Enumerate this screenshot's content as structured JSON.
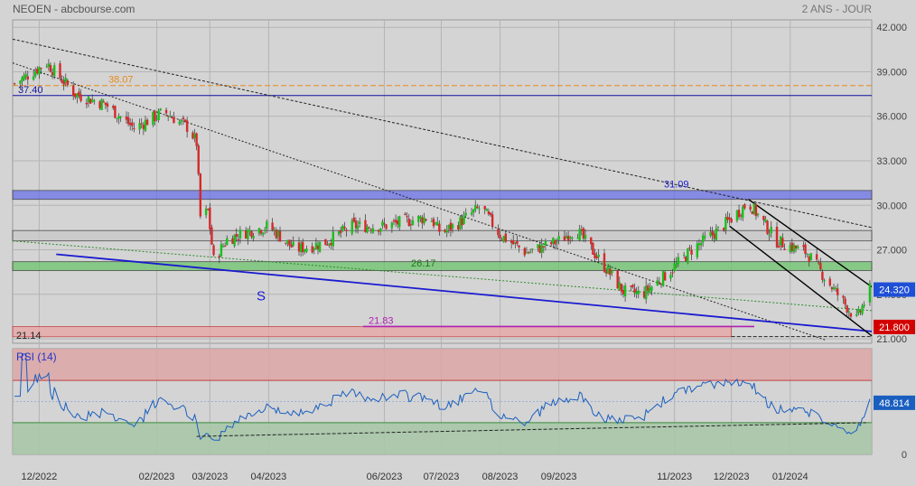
{
  "header": {
    "title": "NEOEN - abcbourse.com",
    "period": "2 ANS - JOUR"
  },
  "chart_data": [
    {
      "type": "candlestick",
      "name": "price",
      "ylim": [
        20.7,
        42.5
      ],
      "yticks": [
        21.0,
        24.0,
        27.0,
        30.0,
        33.0,
        36.0,
        39.0,
        42.0
      ],
      "ytick_labels": [
        "21.000",
        "24.000",
        "27.000",
        "30.000",
        "33.000",
        "36.000",
        "39.000",
        "42.000"
      ],
      "price_path": [
        [
          "2022-11-18",
          38.2
        ],
        [
          "2022-12-05",
          39.6
        ],
        [
          "2022-12-20",
          37.5
        ],
        [
          "2023-01-05",
          36.8
        ],
        [
          "2023-01-20",
          35.2
        ],
        [
          "2023-02-05",
          36.3
        ],
        [
          "2023-02-18",
          35.2
        ],
        [
          "2023-02-22",
          34.2
        ],
        [
          "2023-02-24",
          29.2
        ],
        [
          "2023-02-28",
          29.6
        ],
        [
          "2023-03-03",
          26.3
        ],
        [
          "2023-03-10",
          27.7
        ],
        [
          "2023-03-20",
          28.2
        ],
        [
          "2023-04-01",
          28.6
        ],
        [
          "2023-04-15",
          27.0
        ],
        [
          "2023-05-01",
          27.5
        ],
        [
          "2023-05-15",
          28.6
        ],
        [
          "2023-06-01",
          28.6
        ],
        [
          "2023-06-15",
          29.0
        ],
        [
          "2023-06-25",
          29.2
        ],
        [
          "2023-07-01",
          28.1
        ],
        [
          "2023-07-10",
          28.8
        ],
        [
          "2023-07-22",
          29.9
        ],
        [
          "2023-08-01",
          28.0
        ],
        [
          "2023-08-15",
          26.8
        ],
        [
          "2023-09-01",
          27.6
        ],
        [
          "2023-09-10",
          28.4
        ],
        [
          "2023-09-22",
          26.4
        ],
        [
          "2023-10-05",
          24.2
        ],
        [
          "2023-10-15",
          24.0
        ],
        [
          "2023-10-30",
          25.6
        ],
        [
          "2023-11-10",
          27.0
        ],
        [
          "2023-11-25",
          28.4
        ],
        [
          "2023-12-10",
          30.2
        ],
        [
          "2023-12-25",
          27.6
        ],
        [
          "2024-01-10",
          26.8
        ],
        [
          "2024-01-20",
          25.0
        ],
        [
          "2024-02-05",
          22.3
        ],
        [
          "2024-02-12",
          24.3
        ]
      ],
      "last_price": {
        "value": 24.32,
        "label": "24.320",
        "color": "#1f4fd6"
      },
      "close_marker": {
        "value": 21.8,
        "label": "21.800",
        "color": "#d40000"
      },
      "levels": [
        {
          "value": 38.07,
          "label": "38.07",
          "color": "#e88a1a"
        },
        {
          "value": 37.4,
          "label": "37.40",
          "color": "#1010a0"
        },
        {
          "value": 31.09,
          "label": "31.09",
          "color": "#1a1ad0"
        },
        {
          "value": 26.17,
          "label": "26.17",
          "color": "#1a7a1a"
        },
        {
          "value": 21.83,
          "label": "21.83",
          "color": "#b020b0"
        },
        {
          "value": 21.14,
          "label": "21.14",
          "color": "#222222"
        }
      ],
      "annotations": [
        {
          "text": "S",
          "color": "#1a1ad0"
        }
      ],
      "zones": [
        {
          "from": 30.4,
          "to": 31.0,
          "color": "#6b72e8"
        },
        {
          "from": 27.6,
          "to": 28.3,
          "color": "#c8c8c8"
        },
        {
          "from": 25.6,
          "to": 26.2,
          "color": "#6cc46c"
        },
        {
          "from": 21.14,
          "to": 21.83,
          "color": "#e8a3a3"
        }
      ]
    },
    {
      "type": "line",
      "name": "RSI (14)",
      "title": "RSI (14)",
      "ylim": [
        0,
        100
      ],
      "yticks": [
        0
      ],
      "ytick_labels": [
        "0"
      ],
      "last_value": {
        "value": 48.814,
        "label": "48.814"
      },
      "overbought": 70,
      "oversold": 30
    }
  ],
  "x_axis": {
    "labels": [
      "12/2022",
      "02/2023",
      "03/2023",
      "04/2023",
      "06/2023",
      "07/2023",
      "08/2023",
      "09/2023",
      "11/2023",
      "12/2023",
      "01/2024"
    ],
    "dates": [
      "2022-12-01",
      "2023-02-01",
      "2023-03-01",
      "2023-04-01",
      "2023-06-01",
      "2023-07-01",
      "2023-08-01",
      "2023-09-01",
      "2023-11-01",
      "2023-12-01",
      "2024-01-01"
    ]
  },
  "colors": {
    "up": "#1bbf1b",
    "down": "#d42a2a",
    "rsi": "#1a5fbf",
    "grid": "#b4b4b4",
    "panel": "#d4d4d4"
  }
}
